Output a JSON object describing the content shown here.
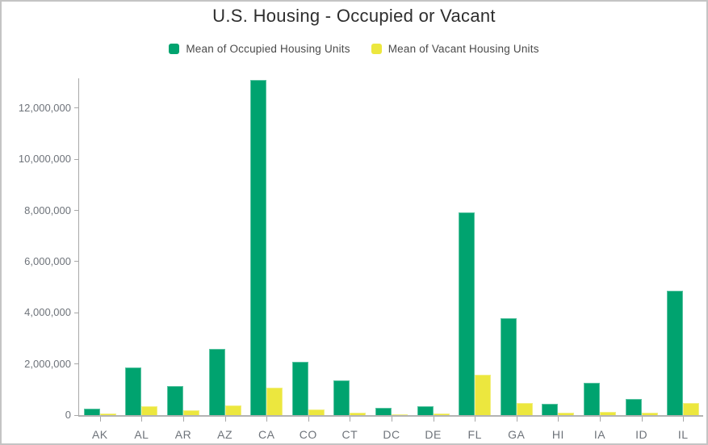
{
  "chart_data": {
    "type": "bar",
    "title": "U.S. Housing - Occupied or Vacant",
    "xlabel": "",
    "ylabel": "",
    "grid": false,
    "legend_position": "top",
    "ylim": [
      0,
      13230000
    ],
    "categories": [
      "AK",
      "AL",
      "AR",
      "AZ",
      "CA",
      "CO",
      "CT",
      "DC",
      "DE",
      "FL",
      "GA",
      "HI",
      "IA",
      "ID",
      "IL"
    ],
    "series": [
      {
        "name": "Mean of Occupied Housing Units",
        "color": "#00A36F",
        "values": [
          250000,
          1850000,
          1150000,
          2600000,
          13100000,
          2100000,
          1370000,
          280000,
          350000,
          7930000,
          3800000,
          440000,
          1250000,
          620000,
          4850000
        ]
      },
      {
        "name": "Mean of Vacant Housing Units",
        "color": "#ECE73E",
        "values": [
          60000,
          350000,
          180000,
          390000,
          1080000,
          220000,
          110000,
          35000,
          60000,
          1580000,
          460000,
          85000,
          130000,
          90000,
          480000
        ]
      }
    ],
    "y_ticks": [
      {
        "v": 0,
        "label": "0"
      },
      {
        "v": 2000000,
        "label": "2,000,000"
      },
      {
        "v": 4000000,
        "label": "4,000,000"
      },
      {
        "v": 6000000,
        "label": "6,000,000"
      },
      {
        "v": 8000000,
        "label": "8,000,000"
      },
      {
        "v": 10000000,
        "label": "10,000,000"
      },
      {
        "v": 12000000,
        "label": "12,000,000"
      }
    ]
  },
  "colors": {
    "frame_border": "#c4c4c4",
    "axis_line": "#a8a8a8",
    "baseline": "#b3b3b3",
    "tick_label": "#6e737a",
    "title": "#2e2e2e",
    "legend_text": "#4a4a4a"
  }
}
